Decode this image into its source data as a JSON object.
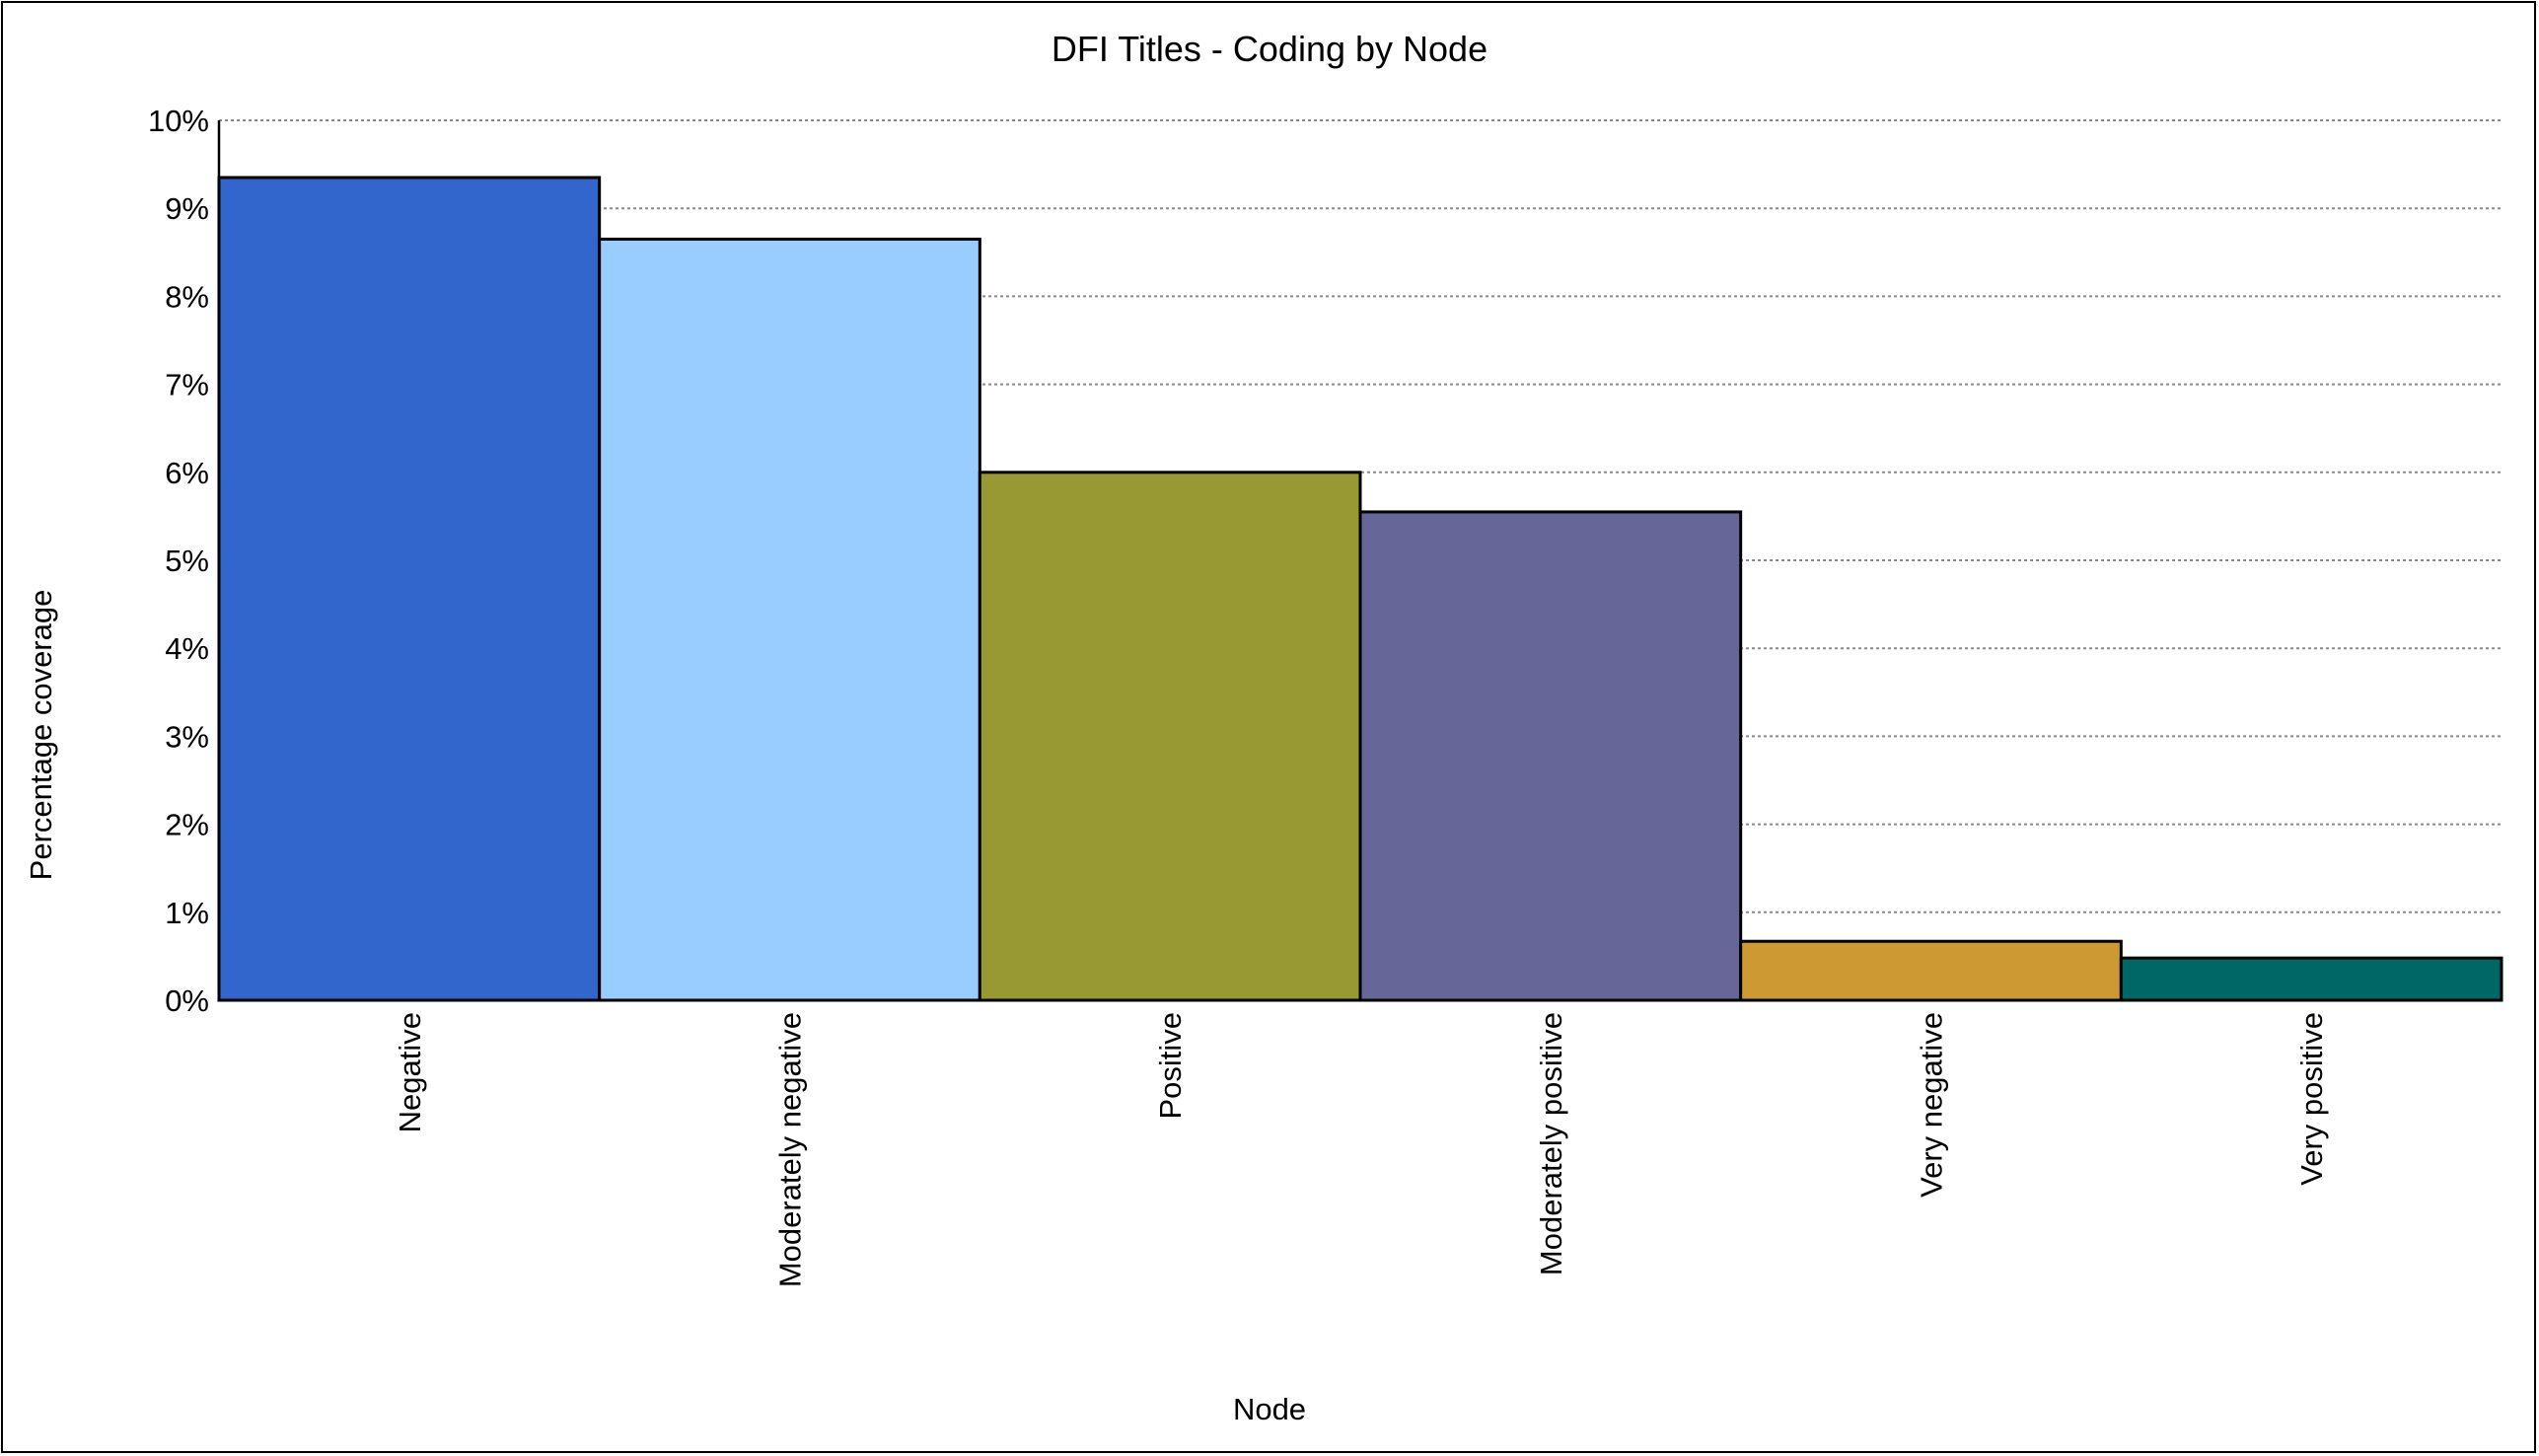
{
  "chart_data": {
    "type": "bar",
    "title": "DFI Titles - Coding by Node",
    "xlabel": "Node",
    "ylabel": "Percentage coverage",
    "categories": [
      "Negative",
      "Moderately negative",
      "Positive",
      "Moderately positive",
      "Very negative",
      "Very positive"
    ],
    "values": [
      9.35,
      8.65,
      6.0,
      5.55,
      0.67,
      0.48
    ],
    "colors": [
      "#3366cc",
      "#99ccff",
      "#999933",
      "#666699",
      "#cc9933",
      "#006666"
    ],
    "ylim": [
      0,
      10
    ],
    "yticks": [
      0,
      1,
      2,
      3,
      4,
      5,
      6,
      7,
      8,
      9,
      10
    ],
    "ytick_labels": [
      "0%",
      "1%",
      "2%",
      "3%",
      "4%",
      "5%",
      "6%",
      "7%",
      "8%",
      "9%",
      "10%"
    ],
    "grid": true,
    "legend": "none"
  }
}
